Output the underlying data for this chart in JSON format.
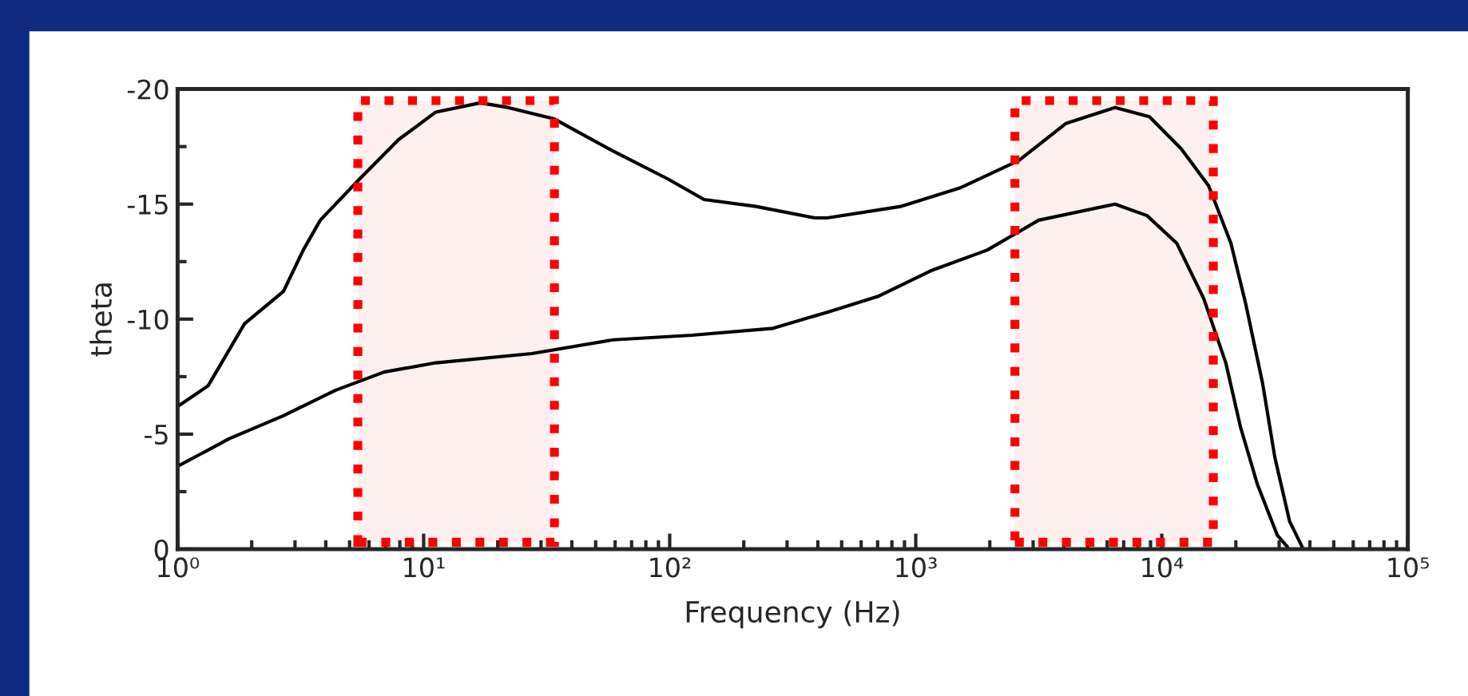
{
  "chart_data": {
    "type": "line",
    "xlabel": "Frequency (Hz)",
    "ylabel": "theta",
    "log": "x",
    "xlim": [
      1,
      100000
    ],
    "xticks": [
      {
        "value": 1,
        "label": "10⁰"
      },
      {
        "value": 10,
        "label": "10¹"
      },
      {
        "value": 100,
        "label": "10²"
      },
      {
        "value": 1000,
        "label": "10³"
      },
      {
        "value": 10000,
        "label": "10⁴"
      },
      {
        "value": 100000,
        "label": "10⁵"
      }
    ],
    "ylim": [
      0,
      -20
    ],
    "yticks": [
      0,
      -5,
      -10,
      -15,
      -20
    ],
    "grid": false,
    "series": [
      {
        "color": "#000000",
        "x": [
          1,
          1.33,
          1.87,
          2.69,
          3.24,
          3.8,
          5.5,
          7.9,
          11.2,
          17,
          22,
          34,
          59,
          98,
          138,
          224,
          389,
          437,
          871,
          1510,
          2630,
          4070,
          6460,
          8910,
          12000,
          15500,
          19100,
          21900,
          25700,
          28800,
          33100,
          37200
        ],
        "values": [
          -6.2,
          -7.1,
          -9.8,
          -11.2,
          -13.0,
          -14.3,
          -16.1,
          -17.8,
          -19.0,
          -19.4,
          -19.2,
          -18.7,
          -17.3,
          -16.1,
          -15.2,
          -14.9,
          -14.4,
          -14.4,
          -14.9,
          -15.7,
          -16.9,
          -18.5,
          -19.2,
          -18.8,
          -17.4,
          -15.8,
          -13.3,
          -10.7,
          -7.2,
          -4.0,
          -1.2,
          -0.1
        ]
      },
      {
        "color": "#000000",
        "x": [
          1,
          1.62,
          2.69,
          4.37,
          6.9,
          11.2,
          27.5,
          59,
          123,
          263,
          437,
          708,
          1150,
          1950,
          3160,
          6460,
          8710,
          11500,
          14800,
          18200,
          20900,
          24500,
          29500,
          32400
        ],
        "values": [
          -3.6,
          -4.8,
          -5.8,
          -6.9,
          -7.7,
          -8.1,
          -8.5,
          -9.1,
          -9.3,
          -9.6,
          -10.3,
          -11.0,
          -12.1,
          -13.0,
          -14.3,
          -15.0,
          -14.5,
          -13.3,
          -10.9,
          -8.1,
          -5.3,
          -2.8,
          -0.6,
          -0.1
        ]
      }
    ],
    "bands": [
      {
        "axis": "x",
        "from": 5.4,
        "to": 34,
        "color": "#ff0000"
      },
      {
        "axis": "x",
        "from": 2530,
        "to": 16200,
        "color": "#ff0000"
      }
    ]
  }
}
